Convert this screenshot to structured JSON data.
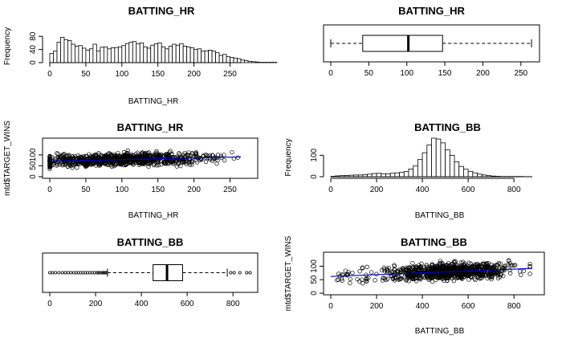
{
  "colors": {
    "background": "#ffffff",
    "ink": "#000000",
    "trend": "#0000cc"
  },
  "chart_data": [
    {
      "id": "p1",
      "type": "bar",
      "title": "BATTING_HR",
      "xlabel": "BATTING_HR",
      "ylabel": "Frequency",
      "xlim": [
        0,
        265
      ],
      "ylim": [
        0,
        100
      ],
      "xticks": [
        "0",
        "50",
        "100",
        "150",
        "200",
        "250"
      ],
      "yticks": [
        "0",
        "40",
        "80"
      ],
      "bin_width": 5,
      "bin_start": 0,
      "values": [
        28,
        35,
        62,
        77,
        70,
        67,
        56,
        50,
        52,
        44,
        38,
        42,
        56,
        35,
        47,
        48,
        42,
        45,
        46,
        48,
        52,
        58,
        62,
        64,
        57,
        60,
        48,
        44,
        53,
        57,
        60,
        48,
        42,
        50,
        56,
        53,
        58,
        50,
        48,
        45,
        40,
        42,
        35,
        36,
        38,
        35,
        30,
        22,
        25,
        18,
        16,
        14,
        12,
        8,
        6,
        4,
        3,
        2,
        1,
        1,
        1,
        1,
        1
      ]
    },
    {
      "id": "p2",
      "type": "box",
      "title": "BATTING_HR",
      "xlim": [
        0,
        265
      ],
      "xticks": [
        "0",
        "50",
        "100",
        "150",
        "200",
        "250"
      ],
      "min": 0,
      "q1": 42,
      "median": 102,
      "q3": 147,
      "max": 264,
      "outliers": []
    },
    {
      "id": "p3",
      "type": "scatter",
      "title": "BATTING_HR",
      "xlabel": "BATTING_HR",
      "ylabel": "mtd$TARGET_WINS",
      "xlim": [
        0,
        265
      ],
      "ylim": [
        0,
        140
      ],
      "xticks": [
        "0",
        "50",
        "100",
        "150",
        "200",
        "250"
      ],
      "yticks": [
        "0",
        "50",
        "100"
      ],
      "trend": [
        [
          0,
          71
        ],
        [
          265,
          91
        ]
      ]
    },
    {
      "id": "p4",
      "type": "bar",
      "title": "BATTING_BB",
      "xlabel": "BATTING_BB",
      "ylabel": "Frequency",
      "xlim": [
        0,
        880
      ],
      "ylim": [
        0,
        180
      ],
      "xticks": [
        "0",
        "200",
        "400",
        "600",
        "800"
      ],
      "yticks": [
        "0",
        "100"
      ],
      "bin_width": 20,
      "bin_start": 0,
      "values": [
        2,
        4,
        5,
        6,
        7,
        8,
        8,
        10,
        12,
        15,
        16,
        14,
        14,
        16,
        18,
        20,
        24,
        36,
        50,
        80,
        112,
        148,
        180,
        176,
        158,
        125,
        100,
        70,
        48,
        35,
        25,
        18,
        12,
        8,
        5,
        3,
        2,
        1,
        1,
        1,
        1,
        1
      ]
    },
    {
      "id": "p5",
      "type": "box",
      "title": "BATTING_BB",
      "xlim": [
        0,
        880
      ],
      "xticks": [
        "0",
        "200",
        "400",
        "600",
        "800"
      ],
      "min": 252,
      "q1": 451,
      "median": 512,
      "q3": 580,
      "max": 775,
      "outliers": [
        0,
        12,
        25,
        40,
        55,
        68,
        80,
        92,
        105,
        115,
        125,
        135,
        145,
        155,
        165,
        175,
        185,
        195,
        205,
        212,
        220,
        228,
        235,
        242,
        248,
        790,
        805,
        830,
        860,
        875
      ]
    },
    {
      "id": "p6",
      "type": "scatter",
      "title": "BATTING_BB",
      "xlabel": "BATTING_BB",
      "ylabel": "mtd$TARGET_WINS",
      "xlim": [
        0,
        880
      ],
      "ylim": [
        0,
        140
      ],
      "xticks": [
        "0",
        "200",
        "400",
        "600",
        "800"
      ],
      "yticks": [
        "0",
        "50",
        "100"
      ],
      "trend": [
        [
          0,
          62
        ],
        [
          880,
          92
        ]
      ]
    }
  ]
}
